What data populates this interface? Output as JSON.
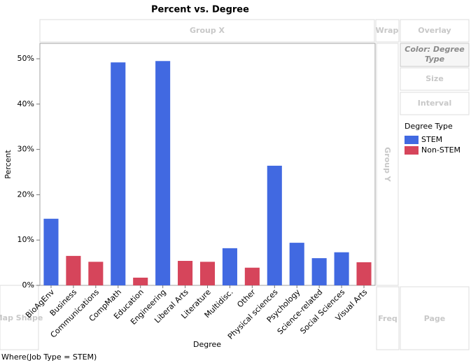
{
  "chart_data": {
    "type": "bar",
    "title": "Percent vs. Degree",
    "x_label": "Degree",
    "y_label": "Percent",
    "categories": [
      "BioAgEnv",
      "Business",
      "Communications",
      "CompMath",
      "Education",
      "Engineering",
      "Liberal Arts",
      "Literature",
      "Multidisc.",
      "Other",
      "Physical sciences",
      "Psychology",
      "Science-related",
      "Social Sciences",
      "Visual Arts"
    ],
    "legend_title": "Degree Type",
    "series": [
      {
        "name": "STEM",
        "color": "#4169e1",
        "values": [
          14.7,
          null,
          null,
          49.2,
          null,
          49.5,
          null,
          null,
          8.2,
          null,
          26.4,
          9.4,
          6.0,
          7.3,
          null
        ]
      },
      {
        "name": "Non-STEM",
        "color": "#d6455b",
        "values": [
          null,
          6.5,
          5.2,
          null,
          1.7,
          null,
          5.4,
          5.2,
          null,
          3.9,
          null,
          null,
          null,
          null,
          5.1
        ]
      }
    ],
    "ylim": [
      0,
      53.4
    ],
    "yticks": [
      {
        "value": 0,
        "label": "0%"
      },
      {
        "value": 10,
        "label": "10%"
      },
      {
        "value": 20,
        "label": "20%"
      },
      {
        "value": 30,
        "label": "30%"
      },
      {
        "value": 40,
        "label": "40%"
      },
      {
        "value": 50,
        "label": "50%"
      }
    ],
    "grid": false
  },
  "ui": {
    "group_x": "Group X",
    "wrap": "Wrap",
    "overlay": "Overlay",
    "color": "Color: Degree Type",
    "size": "Size",
    "interval": "Interval",
    "group_y": "Group Y",
    "map_shape": "Map Shape",
    "freq": "Freq",
    "page": "Page",
    "footer": "Where(Job Type = STEM)"
  }
}
